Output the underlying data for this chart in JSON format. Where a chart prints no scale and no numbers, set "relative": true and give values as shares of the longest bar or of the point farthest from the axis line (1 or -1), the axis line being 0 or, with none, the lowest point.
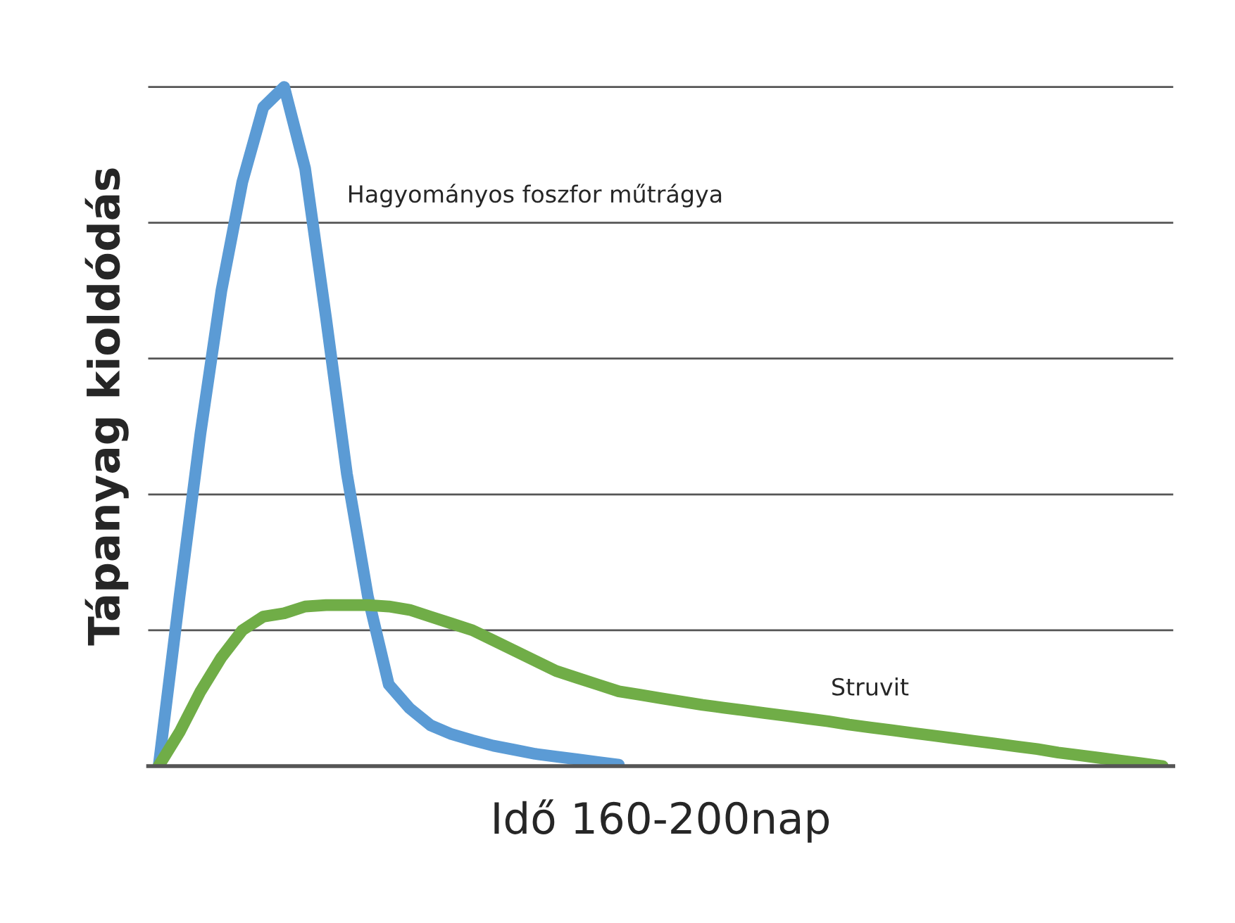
{
  "chart_data": {
    "type": "line",
    "xlabel": "Idő 160-200nap",
    "ylabel": "Tápanyag kioldódás",
    "relative": true,
    "grid": "y",
    "legend": false,
    "marker": "none",
    "line_style": "solid",
    "categories": [
      null,
      null,
      null,
      null,
      null,
      null,
      null,
      null,
      null,
      null,
      null,
      null,
      null,
      null,
      null,
      null,
      null,
      null,
      null,
      null,
      null,
      null,
      null,
      null,
      null,
      null,
      null,
      null,
      null,
      null,
      null,
      null,
      null,
      null,
      null,
      null,
      null,
      null,
      null,
      null,
      null,
      null,
      null,
      null,
      null,
      null,
      null,
      null,
      null
    ],
    "series": [
      {
        "name": "Hagyományos foszfor műtrágya",
        "color": "#5b9bd5",
        "values": [
          0,
          0.25,
          0.49,
          0.7,
          0.86,
          0.97,
          1,
          0.88,
          0.66,
          0.43,
          0.25,
          0.12,
          0.085,
          0.06,
          0.047,
          0.038,
          0.03,
          0.024,
          0.018,
          0.014,
          0.01,
          0.006,
          0.002,
          null,
          null,
          null,
          null,
          null,
          null,
          null,
          null,
          null,
          null,
          null,
          null,
          null,
          null,
          null,
          null,
          null,
          null,
          null,
          null,
          null,
          null,
          null,
          null,
          null,
          null
        ]
      },
      {
        "name": "Struvit",
        "color": "#70ad47",
        "values": [
          0,
          0.05,
          0.11,
          0.16,
          0.2,
          0.22,
          0.225,
          0.235,
          0.237,
          0.237,
          0.237,
          0.235,
          0.23,
          0.22,
          0.21,
          0.2,
          0.185,
          0.17,
          0.155,
          0.14,
          0.13,
          0.12,
          0.11,
          0.105,
          0.1,
          0.095,
          0.09,
          0.086,
          0.082,
          0.078,
          0.074,
          0.07,
          0.066,
          0.061,
          0.057,
          0.053,
          0.049,
          0.045,
          0.041,
          0.037,
          0.033,
          0.029,
          0.025,
          0.02,
          0.016,
          0.012,
          0.008,
          0.004,
          0
        ]
      }
    ]
  }
}
